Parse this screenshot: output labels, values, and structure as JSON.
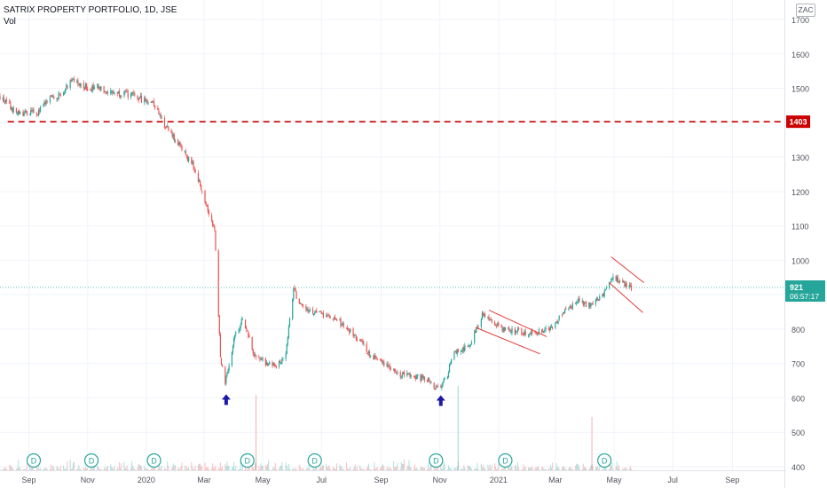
{
  "legend": {
    "symbol_line": "SATRIX PROPERTY PORTFOLIO, 1D, JSE",
    "volume_label": "Vol"
  },
  "currency": "ZAC",
  "price_badges": {
    "resistance": "1403",
    "last_price": "921",
    "countdown": "06:57:17"
  },
  "colors": {
    "up": "#26a69a",
    "down": "#ef5350",
    "resistance_line": "#cc0000",
    "arrow": "#1a1aa6",
    "dividend_marker": "#26a69a"
  },
  "chart_data": {
    "type": "candlestick",
    "title": "SATRIX PROPERTY PORTFOLIO, 1D, JSE",
    "ylim": [
      392,
      1742
    ],
    "y_ticks": [
      400,
      500,
      600,
      700,
      800,
      900,
      1000,
      1100,
      1200,
      1300,
      1400,
      1500,
      1600,
      1700
    ],
    "x_tick_labels": [
      "Sep",
      "Nov",
      "2020",
      "Mar",
      "May",
      "Jul",
      "Sep",
      "Nov",
      "2021",
      "Mar",
      "May",
      "Jul",
      "Sep"
    ],
    "x_tick_dates": [
      "2019-09-01",
      "2019-11-01",
      "2020-01-01",
      "2020-03-01",
      "2020-05-01",
      "2020-07-01",
      "2020-09-01",
      "2020-11-01",
      "2021-01-01",
      "2021-03-01",
      "2021-05-01",
      "2021-07-01",
      "2021-09-01"
    ],
    "x_range": [
      "2019-08-02",
      "2021-10-25"
    ],
    "last_date": "2021-05-19",
    "close_path": [
      [
        "2019-08-02",
        1475
      ],
      [
        "2019-08-20",
        1425
      ],
      [
        "2019-09-10",
        1430
      ],
      [
        "2019-09-25",
        1475
      ],
      [
        "2019-10-05",
        1480
      ],
      [
        "2019-10-15",
        1530
      ],
      [
        "2019-10-25",
        1505
      ],
      [
        "2019-11-10",
        1500
      ],
      [
        "2019-11-25",
        1490
      ],
      [
        "2019-12-10",
        1485
      ],
      [
        "2019-12-25",
        1470
      ],
      [
        "2020-01-08",
        1460
      ],
      [
        "2020-01-20",
        1395
      ],
      [
        "2020-02-05",
        1330
      ],
      [
        "2020-02-20",
        1270
      ],
      [
        "2020-03-05",
        1150
      ],
      [
        "2020-03-12",
        1090
      ],
      [
        "2020-03-18",
        720
      ],
      [
        "2020-03-23",
        640
      ],
      [
        "2020-04-01",
        770
      ],
      [
        "2020-04-10",
        830
      ],
      [
        "2020-04-15",
        790
      ],
      [
        "2020-04-22",
        725
      ],
      [
        "2020-05-05",
        700
      ],
      [
        "2020-05-15",
        690
      ],
      [
        "2020-05-25",
        730
      ],
      [
        "2020-06-02",
        920
      ],
      [
        "2020-06-08",
        870
      ],
      [
        "2020-06-20",
        850
      ],
      [
        "2020-07-05",
        840
      ],
      [
        "2020-07-20",
        820
      ],
      [
        "2020-08-05",
        780
      ],
      [
        "2020-08-20",
        730
      ],
      [
        "2020-09-05",
        700
      ],
      [
        "2020-09-20",
        670
      ],
      [
        "2020-10-05",
        665
      ],
      [
        "2020-10-20",
        650
      ],
      [
        "2020-10-30",
        625
      ],
      [
        "2020-11-08",
        660
      ],
      [
        "2020-11-15",
        730
      ],
      [
        "2020-12-01",
        750
      ],
      [
        "2020-12-15",
        840
      ],
      [
        "2021-01-05",
        800
      ],
      [
        "2021-01-25",
        790
      ],
      [
        "2021-02-10",
        790
      ],
      [
        "2021-02-25",
        800
      ],
      [
        "2021-03-10",
        850
      ],
      [
        "2021-03-25",
        880
      ],
      [
        "2021-04-05",
        870
      ],
      [
        "2021-04-20",
        900
      ],
      [
        "2021-05-01",
        950
      ],
      [
        "2021-05-10",
        935
      ],
      [
        "2021-05-19",
        921
      ]
    ],
    "horizontal_level": {
      "price": 1403,
      "style": "dashed",
      "from": "2019-08-10"
    },
    "channels": [
      {
        "upper": [
          [
            "2020-12-22",
            855
          ],
          [
            "2021-02-20",
            778
          ]
        ],
        "lower": [
          [
            "2020-12-08",
            805
          ],
          [
            "2021-02-13",
            728
          ]
        ]
      },
      {
        "upper": [
          [
            "2021-04-28",
            1010
          ],
          [
            "2021-06-01",
            935
          ]
        ],
        "lower": [
          [
            "2021-04-26",
            935
          ],
          [
            "2021-05-31",
            848
          ]
        ]
      }
    ],
    "arrows": [
      {
        "date": "2020-03-24",
        "price": 590
      },
      {
        "date": "2020-11-02",
        "price": 587
      }
    ],
    "dividends": [
      "2019-09-06",
      "2019-11-05",
      "2020-01-09",
      "2020-04-15",
      "2020-06-24",
      "2020-10-28",
      "2021-01-08",
      "2021-04-21"
    ],
    "dividend_label": "D",
    "volume_spikes": [
      [
        "2020-04-24",
        0.85
      ],
      [
        "2020-11-20",
        0.95
      ],
      [
        "2021-04-08",
        0.6
      ]
    ]
  }
}
